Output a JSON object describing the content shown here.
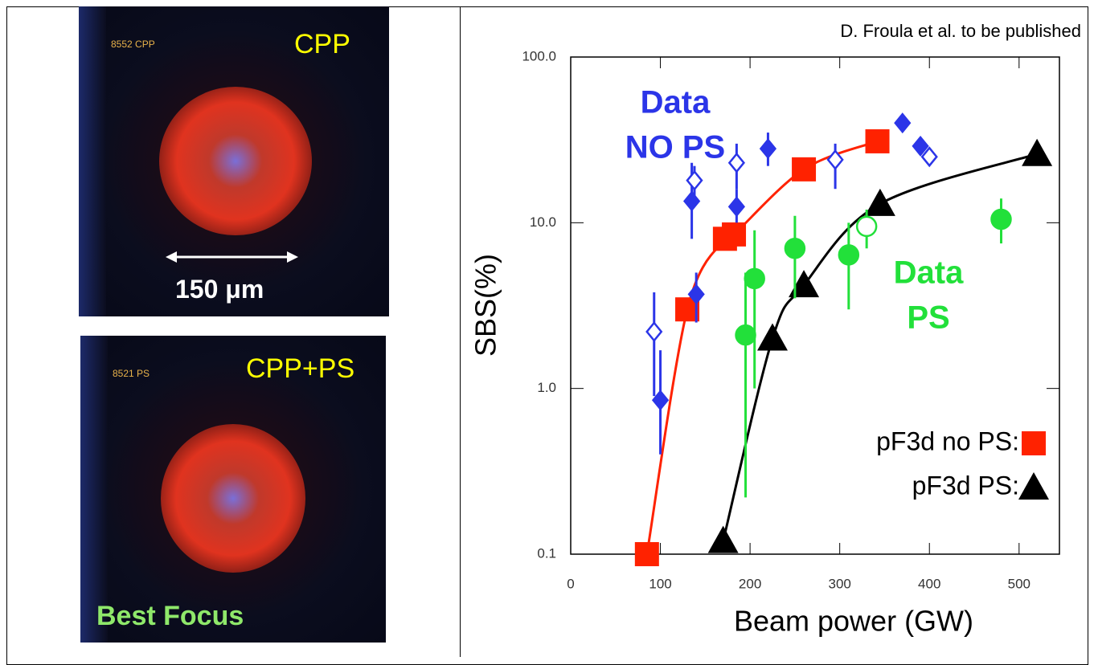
{
  "images": [
    {
      "shot_label": "8552 CPP",
      "caption": "CPP",
      "scale_label": "150 μm"
    },
    {
      "shot_label": "8521 PS",
      "caption": "CPP+PS",
      "note": "Best Focus"
    }
  ],
  "chart_data": {
    "type": "scatter",
    "note": "D. Froula et al. to be published",
    "x_label": "Beam power (GW)",
    "y_label": "SBS(%)",
    "xlim": [
      0,
      545
    ],
    "xticks": [
      0,
      100,
      200,
      300,
      400,
      500
    ],
    "ylim": [
      0.1,
      100
    ],
    "log_y": true,
    "yticks": [
      0.1,
      {
        "value": 1,
        "label": "1.0"
      },
      {
        "value": 10,
        "label": "10.0"
      },
      {
        "value": 100,
        "label": "100.0"
      }
    ],
    "annotations": [
      {
        "lines": [
          "Data",
          "NO PS"
        ],
        "color": "#2b35e8"
      },
      {
        "lines": [
          "Data",
          "PS"
        ],
        "color": "#22e03a"
      }
    ],
    "series": [
      {
        "name": "pF3d no PS:",
        "color": "#ff2200",
        "marker": "square",
        "line": true,
        "x": [
          85,
          130,
          172,
          182,
          260,
          342
        ],
        "values": [
          0.1,
          3.0,
          8.0,
          8.5,
          21,
          31
        ]
      },
      {
        "name": "pF3d PS:",
        "color": "#000000",
        "marker": "triangle",
        "line": true,
        "x": [
          170,
          225,
          260,
          345,
          520
        ],
        "values": [
          0.12,
          2.0,
          4.2,
          13,
          26
        ]
      },
      {
        "color": "#2b35e8",
        "marker": "diamond",
        "x": [
          100,
          135,
          140,
          185,
          220,
          370,
          390
        ],
        "values": [
          0.85,
          13.5,
          3.7,
          12.5,
          28,
          40,
          29
        ],
        "ylow": [
          0.4,
          8,
          2.5,
          10,
          22,
          null,
          null
        ],
        "yhigh": [
          1.7,
          23,
          5,
          16,
          35,
          null,
          null
        ]
      },
      {
        "color": "#2b35e8",
        "marker": "open-diamond",
        "x": [
          93,
          138,
          185,
          295,
          400
        ],
        "values": [
          2.2,
          18,
          23,
          24,
          25
        ],
        "ylow": [
          0.9,
          13,
          16,
          16,
          null
        ],
        "yhigh": [
          3.8,
          22,
          30,
          30,
          null
        ]
      },
      {
        "color": "#22e03a",
        "marker": "circle",
        "x": [
          195,
          205,
          250,
          310,
          480
        ],
        "values": [
          2.1,
          4.6,
          7,
          6.4,
          10.5
        ],
        "ylow": [
          0.22,
          1,
          3.5,
          3,
          7.5
        ],
        "yhigh": [
          5,
          9,
          11,
          10,
          14
        ]
      },
      {
        "color": "#22e03a",
        "marker": "open-circle",
        "x": [
          330
        ],
        "values": [
          9.5
        ],
        "ylow": [
          7
        ],
        "yhigh": [
          12
        ]
      }
    ]
  }
}
